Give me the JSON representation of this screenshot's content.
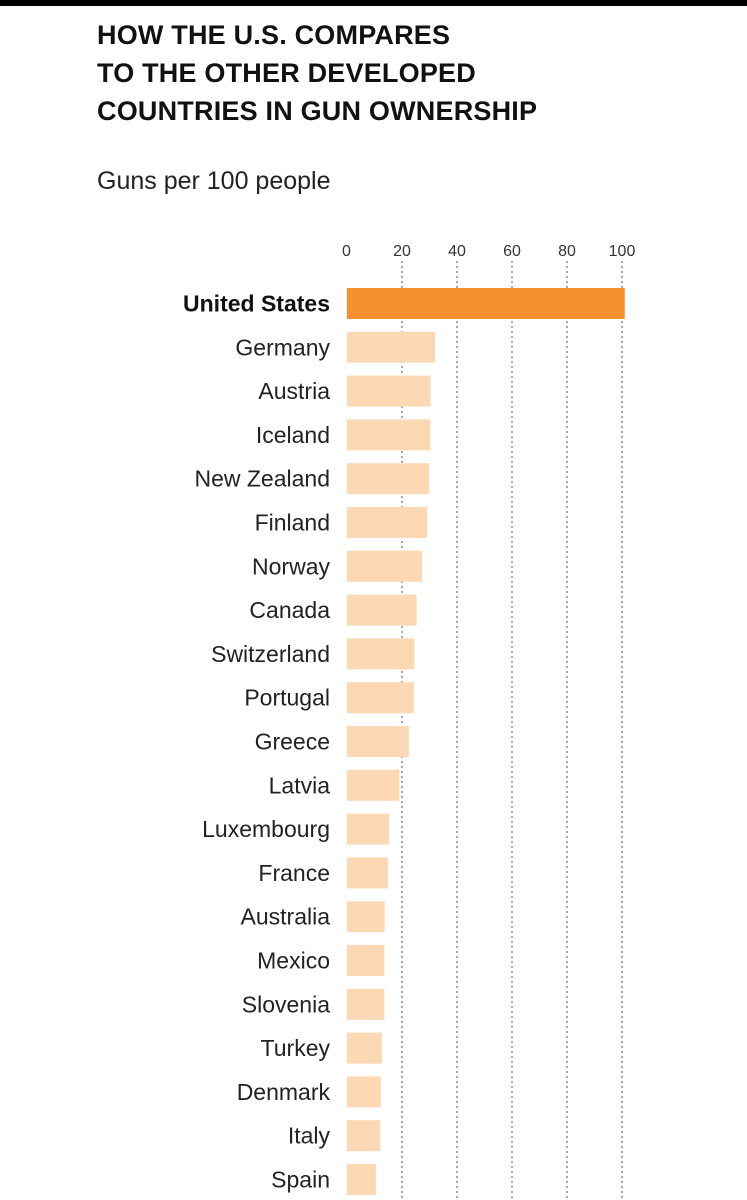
{
  "header": {
    "title": "HOW THE U.S. COMPARES\nTO THE OTHER DEVELOPED\nCOUNTRIES IN GUN OWNERSHIP",
    "subtitle": "Guns per 100 people"
  },
  "colors": {
    "highlight_bar": "#f7902f",
    "bar": "#fdd8b5",
    "gridline": "#555555"
  },
  "chart_data": {
    "type": "bar",
    "orientation": "horizontal",
    "title": "HOW THE U.S. COMPARES TO THE OTHER DEVELOPED COUNTRIES IN GUN OWNERSHIP",
    "xlabel": "Guns per 100 people",
    "ylabel": "",
    "xlim": [
      0,
      100
    ],
    "x_ticks": [
      0,
      20,
      40,
      60,
      80,
      100
    ],
    "grid": "vertical dotted lines at ticks",
    "legend": "none",
    "highlight_category": "United States",
    "categories": [
      "United States",
      "Germany",
      "Austria",
      "Iceland",
      "New Zealand",
      "Finland",
      "Norway",
      "Canada",
      "Switzerland",
      "Portugal",
      "Greece",
      "Latvia",
      "Luxembourg",
      "France",
      "Australia",
      "Mexico",
      "Slovenia",
      "Turkey",
      "Denmark",
      "Italy",
      "Spain"
    ],
    "values": [
      101.0,
      32.0,
      30.4,
      30.3,
      29.8,
      29.1,
      27.3,
      25.3,
      24.5,
      24.3,
      22.5,
      19.0,
      15.3,
      14.9,
      13.7,
      13.6,
      13.6,
      12.7,
      12.3,
      12.1,
      10.5
    ]
  }
}
